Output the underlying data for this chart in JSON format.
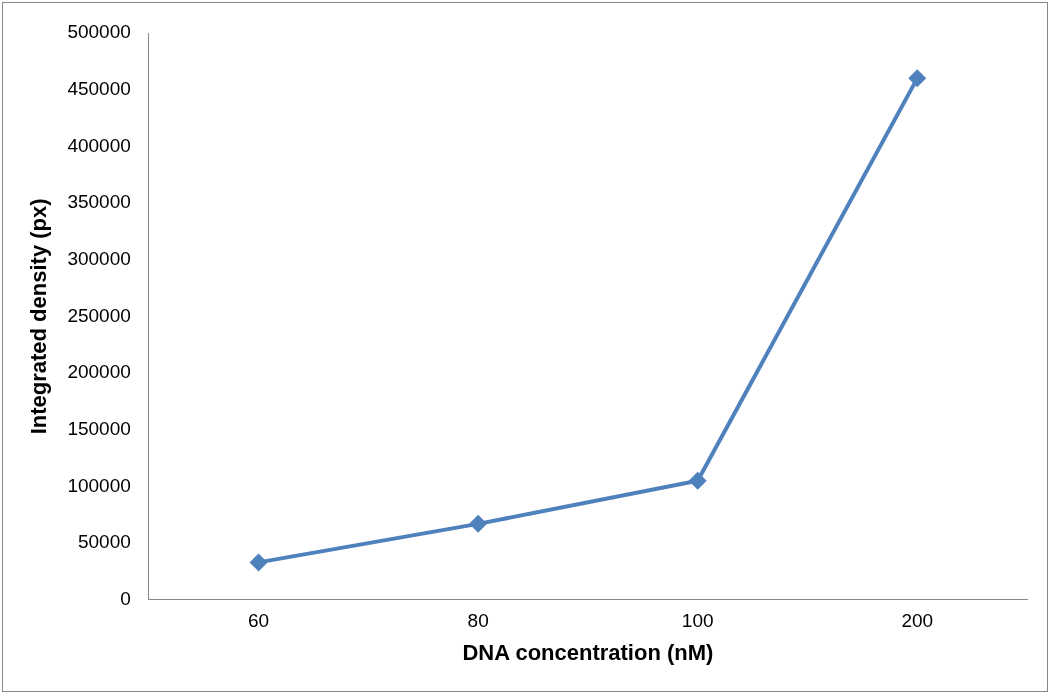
{
  "chart_data": {
    "type": "line",
    "xlabel": "DNA concentration (nM)",
    "ylabel": "Integrated density (px)",
    "categories": [
      "60",
      "80",
      "100",
      "200"
    ],
    "series": [
      {
        "color": "#4f81bd",
        "values": [
          33000,
          67000,
          105000,
          460000
        ]
      }
    ],
    "ylim": [
      0,
      500000
    ],
    "yticks": [
      0,
      50000,
      100000,
      150000,
      200000,
      250000,
      300000,
      350000,
      400000,
      450000,
      500000
    ],
    "grid": false,
    "legend": false,
    "marker": "diamond",
    "line_style": "solid"
  }
}
